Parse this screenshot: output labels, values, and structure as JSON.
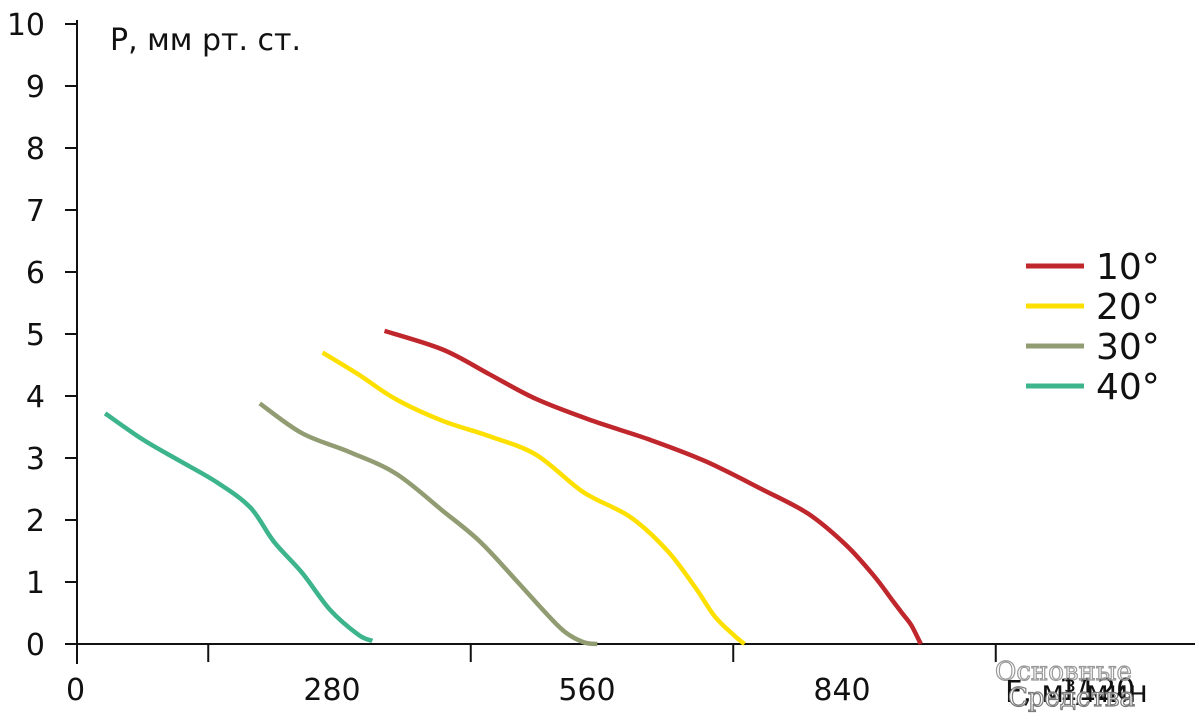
{
  "chart_data": {
    "type": "line",
    "ylabel": "P, мм рт. ст.",
    "xlabel": "F, м³/мин",
    "xlim": [
      0,
      1120
    ],
    "ylim": [
      0,
      10
    ],
    "x_ticks": [
      0,
      280,
      560,
      840,
      1120
    ],
    "y_ticks": [
      0,
      1,
      2,
      3,
      4,
      5,
      6,
      7,
      8,
      9,
      10
    ],
    "grid": false,
    "legend_position": "right",
    "series": [
      {
        "name": "10°",
        "color": "#c0272d",
        "x": [
          328,
          390,
          440,
          490,
          550,
          610,
          670,
          730,
          780,
          820,
          850,
          870,
          880,
          890,
          900
        ],
        "y": [
          5.05,
          4.75,
          4.35,
          3.95,
          3.6,
          3.3,
          2.95,
          2.5,
          2.1,
          1.6,
          1.1,
          0.7,
          0.5,
          0.3,
          0.0
        ]
      },
      {
        "name": "20°",
        "color": "#fee000",
        "x": [
          262,
          300,
          340,
          390,
          440,
          490,
          540,
          590,
          630,
          660,
          680,
          700,
          712
        ],
        "y": [
          4.7,
          4.35,
          3.95,
          3.6,
          3.35,
          3.05,
          2.45,
          2.05,
          1.5,
          0.9,
          0.45,
          0.15,
          0.0
        ]
      },
      {
        "name": "30°",
        "color": "#929c72",
        "x": [
          195,
          240,
          290,
          340,
          390,
          430,
          470,
          500,
          520,
          540,
          555
        ],
        "y": [
          3.88,
          3.4,
          3.1,
          2.75,
          2.15,
          1.65,
          1.0,
          0.5,
          0.2,
          0.03,
          0.0
        ]
      },
      {
        "name": "40°",
        "color": "#3cb48c",
        "x": [
          30,
          70,
          110,
          150,
          185,
          210,
          240,
          270,
          300,
          315
        ],
        "y": [
          3.72,
          3.3,
          2.95,
          2.6,
          2.2,
          1.65,
          1.15,
          0.55,
          0.15,
          0.05
        ]
      }
    ]
  },
  "watermark": {
    "line1": "Основные",
    "line2": "Средства"
  }
}
